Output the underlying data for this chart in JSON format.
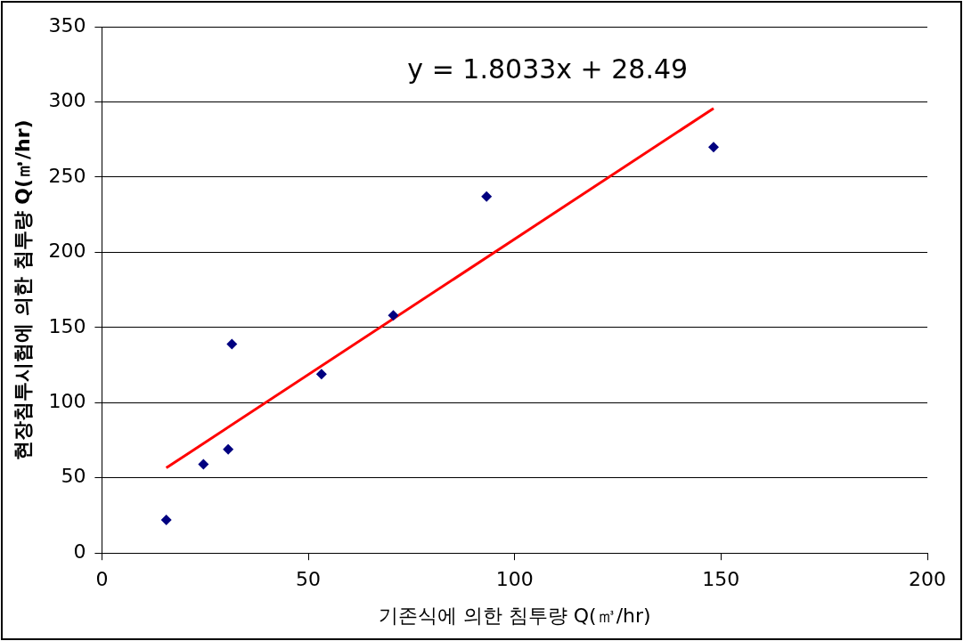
{
  "chart_data": {
    "type": "scatter",
    "xlabel": "기존식에 의한 침투량 Q(㎥/hr)",
    "ylabel": "현장침투시험에 의한 침투량 Q(㎥/hr)",
    "xlim": [
      0,
      200
    ],
    "xticks": [
      0,
      50,
      100,
      150,
      200
    ],
    "ylim": [
      0,
      350
    ],
    "yticks": [
      0,
      50,
      100,
      150,
      200,
      250,
      300,
      350
    ],
    "grid": "y",
    "marker": "diamond",
    "legend": false,
    "annotations": [
      "y = 1.8033x + 28.49"
    ],
    "series": [
      {
        "type": "scatter",
        "color": "#000080",
        "x": [
          15.6,
          24.6,
          30.6,
          31.5,
          53.2,
          70.6,
          93.2,
          148.2
        ],
        "values": [
          22,
          59,
          69,
          139,
          119,
          158,
          237,
          270
        ]
      },
      {
        "type": "line",
        "color": "#ff0000",
        "marker": "none",
        "line_style": "solid",
        "x": [
          15.6,
          148.2
        ],
        "values": [
          56.6,
          295.7
        ]
      }
    ]
  }
}
